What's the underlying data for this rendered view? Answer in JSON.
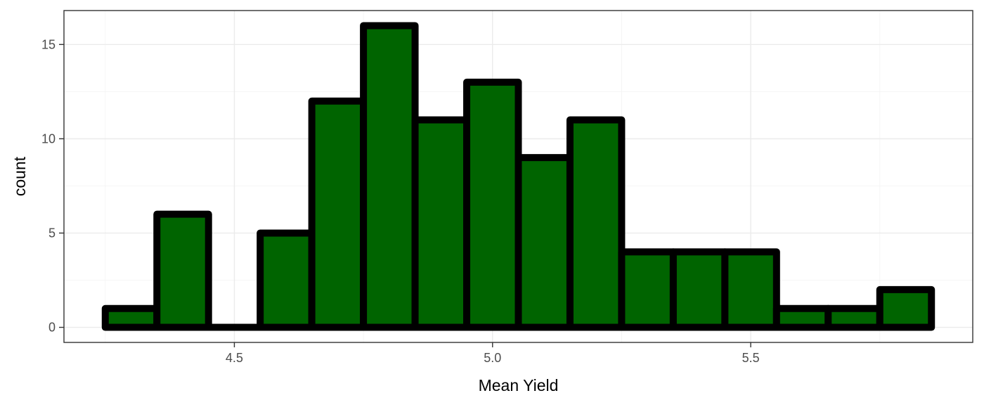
{
  "chart_data": {
    "type": "bar",
    "subtype": "histogram",
    "title": "",
    "xlabel": "Mean Yield",
    "ylabel": "count",
    "bin_width": 0.1,
    "bins": [
      {
        "start": 4.25,
        "end": 4.35,
        "count": 1
      },
      {
        "start": 4.35,
        "end": 4.45,
        "count": 6
      },
      {
        "start": 4.45,
        "end": 4.55,
        "count": 0
      },
      {
        "start": 4.55,
        "end": 4.65,
        "count": 5
      },
      {
        "start": 4.65,
        "end": 4.75,
        "count": 12
      },
      {
        "start": 4.75,
        "end": 4.85,
        "count": 16
      },
      {
        "start": 4.85,
        "end": 4.95,
        "count": 11
      },
      {
        "start": 4.95,
        "end": 5.05,
        "count": 13
      },
      {
        "start": 5.05,
        "end": 5.15,
        "count": 9
      },
      {
        "start": 5.15,
        "end": 5.25,
        "count": 11
      },
      {
        "start": 5.25,
        "end": 5.35,
        "count": 4
      },
      {
        "start": 5.35,
        "end": 5.45,
        "count": 4
      },
      {
        "start": 5.45,
        "end": 5.55,
        "count": 4
      },
      {
        "start": 5.55,
        "end": 5.65,
        "count": 1
      },
      {
        "start": 5.65,
        "end": 5.75,
        "count": 1
      },
      {
        "start": 5.75,
        "end": 5.85,
        "count": 2
      }
    ],
    "xlim": [
      4.17,
      5.93
    ],
    "ylim": [
      -0.8,
      16.8
    ],
    "x_ticks": [
      4.5,
      5.0,
      5.5
    ],
    "x_tick_labels": [
      "4.5",
      "5.0",
      "5.5"
    ],
    "y_ticks": [
      0,
      5,
      10,
      15
    ],
    "y_tick_labels": [
      "0",
      "5",
      "10",
      "15"
    ],
    "grid": true,
    "fill_color": "#006400",
    "outline_color": "#000000",
    "panel_border_color": "#333333",
    "grid_color": "#ebebeb"
  }
}
